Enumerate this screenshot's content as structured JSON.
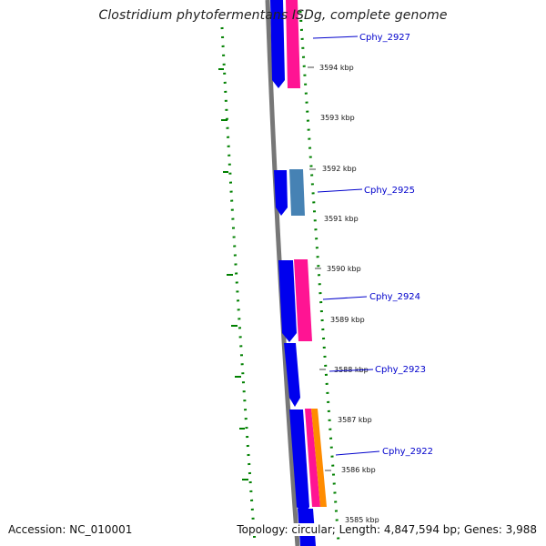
{
  "title": "Clostridium phytofermentans ISDg, complete genome",
  "footer": {
    "accession": "Accession: NC_010001",
    "summary": "Topology: circular; Length: 4,847,594 bp; Genes: 3,988"
  },
  "ticks": [
    "3594 kbp",
    "3593 kbp",
    "3592 kbp",
    "3591 kbp",
    "3590 kbp",
    "3589 kbp",
    "3588 kbp",
    "3587 kbp",
    "3586 kbp",
    "3585 kbp"
  ],
  "genes": [
    "Cphy_2927",
    "Cphy_2925",
    "Cphy_2924",
    "Cphy_2923",
    "Cphy_2922"
  ],
  "colors": {
    "cds_forward": "#0000ee",
    "cds_reverse": "#ff1493",
    "cds_light": "#4682b4",
    "orf": "#ff8c00",
    "backbone": "#777777",
    "gc_skew": "#008000",
    "label": "#0000cc"
  }
}
